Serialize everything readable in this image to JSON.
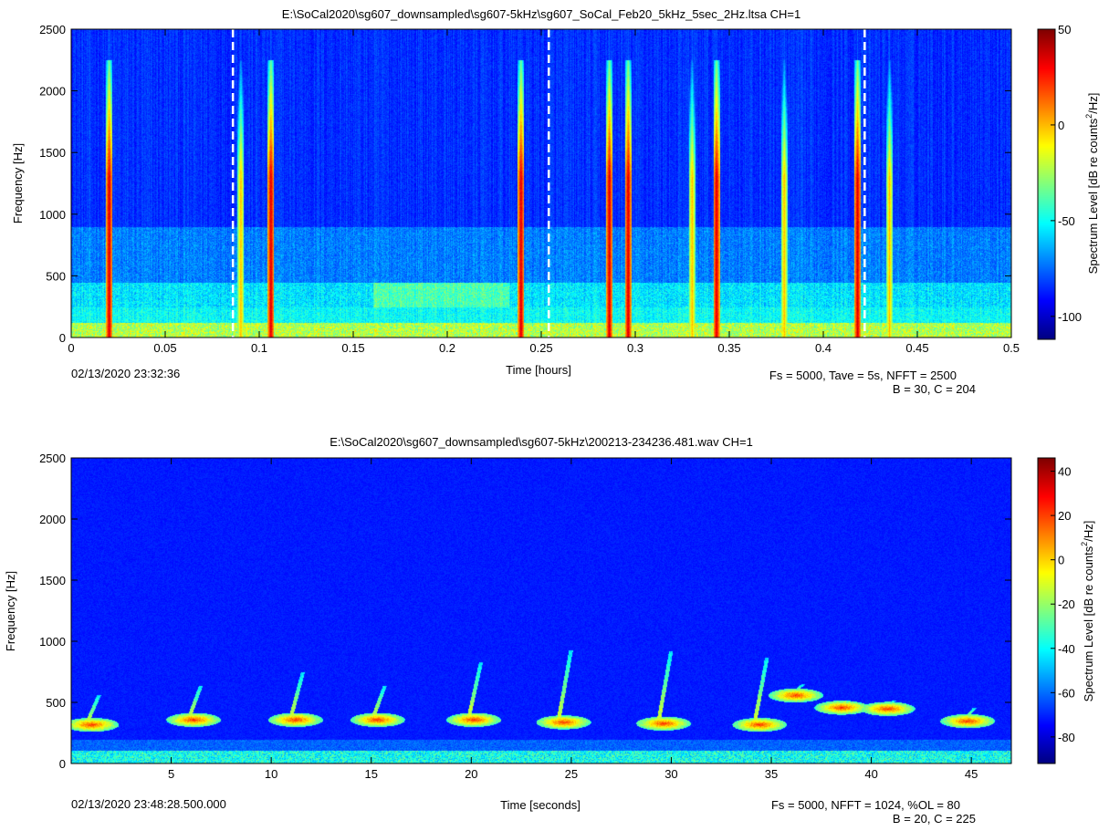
{
  "chart_data": [
    {
      "type": "heatmap",
      "title": "E:\\SoCal2020\\sg607_downsampled\\sg607-5kHz\\sg607_SoCal_Feb20_5kHz_5sec_2Hz.ltsa CH=1",
      "xlabel": "Time [hours]",
      "ylabel": "Frequency [Hz]",
      "xlim": [
        0,
        0.5
      ],
      "ylim": [
        0,
        2500
      ],
      "xticks": [
        0,
        0.05,
        0.1,
        0.15,
        0.2,
        0.25,
        0.3,
        0.35,
        0.4,
        0.45,
        0.5
      ],
      "xtick_labels": [
        "0",
        "0.05",
        "0.1",
        "0.15",
        "0.2",
        "0.25",
        "0.3",
        "0.35",
        "0.4",
        "0.45",
        "0.5"
      ],
      "yticks": [
        0,
        500,
        1000,
        1500,
        2000,
        2500
      ],
      "ytick_labels": [
        "0",
        "500",
        "1000",
        "1500",
        "2000",
        "2500"
      ],
      "colorbar": {
        "label_main": "Spectrum Level [dB re counts",
        "label_sup": "2",
        "label_end": "/Hz]",
        "range": [
          -112,
          50
        ],
        "ticks": [
          -100,
          -50,
          0,
          50
        ],
        "tick_labels": [
          "-100",
          "-50",
          "0",
          "50"
        ]
      },
      "start_time": "02/13/2020 23:32:36",
      "params_line1": "Fs = 5000, Tave = 5s, NFFT = 2500",
      "params_line2": "B = 30, C = 204",
      "dashed_markers": [
        0.086,
        0.254,
        0.422
      ],
      "broadband_events": [
        0.02,
        0.09,
        0.106,
        0.239,
        0.286,
        0.296,
        0.33,
        0.343,
        0.379,
        0.418,
        0.435
      ],
      "hot_events": [
        0.02,
        0.106,
        0.239,
        0.286,
        0.296,
        0.343,
        0.418
      ]
    },
    {
      "type": "heatmap",
      "title": "E:\\SoCal2020\\sg607_downsampled\\sg607-5kHz\\200213-234236.481.wav CH=1",
      "xlabel": "Time [seconds]",
      "ylabel": "Frequency [Hz]",
      "xlim": [
        0,
        47
      ],
      "ylim": [
        0,
        2500
      ],
      "xticks": [
        5,
        10,
        15,
        20,
        25,
        30,
        35,
        40,
        45
      ],
      "xtick_labels": [
        "5",
        "10",
        "15",
        "20",
        "25",
        "30",
        "35",
        "40",
        "45"
      ],
      "yticks": [
        0,
        500,
        1000,
        1500,
        2000,
        2500
      ],
      "ytick_labels": [
        "0",
        "500",
        "1000",
        "1500",
        "2000",
        "2500"
      ],
      "colorbar": {
        "label_main": "Spectrum Level [dB re counts",
        "label_sup": "2",
        "label_end": "/Hz]",
        "range": [
          -92,
          46
        ],
        "ticks": [
          -80,
          -60,
          -40,
          -20,
          0,
          20,
          40
        ],
        "tick_labels": [
          "-80",
          "-60",
          "-40",
          "-20",
          "0",
          "20",
          "40"
        ]
      },
      "start_time": "02/13/2020 23:48:28.500.000",
      "params_line1": "Fs = 5000, NFFT = 1024, %OL = 80",
      "params_line2": "B = 20, C = 225",
      "calls": [
        {
          "t": 1.0,
          "f": 320,
          "top": 560
        },
        {
          "t": 6.1,
          "f": 360,
          "top": 640
        },
        {
          "t": 11.2,
          "f": 360,
          "top": 750
        },
        {
          "t": 15.3,
          "f": 360,
          "top": 640
        },
        {
          "t": 20.1,
          "f": 360,
          "top": 830
        },
        {
          "t": 24.6,
          "f": 340,
          "top": 930
        },
        {
          "t": 29.6,
          "f": 330,
          "top": 920
        },
        {
          "t": 34.4,
          "f": 320,
          "top": 870
        },
        {
          "t": 36.2,
          "f": 560,
          "top": 650
        },
        {
          "t": 38.5,
          "f": 460,
          "top": 520
        },
        {
          "t": 40.8,
          "f": 450,
          "top": 520
        },
        {
          "t": 44.8,
          "f": 350,
          "top": 460
        }
      ]
    }
  ]
}
